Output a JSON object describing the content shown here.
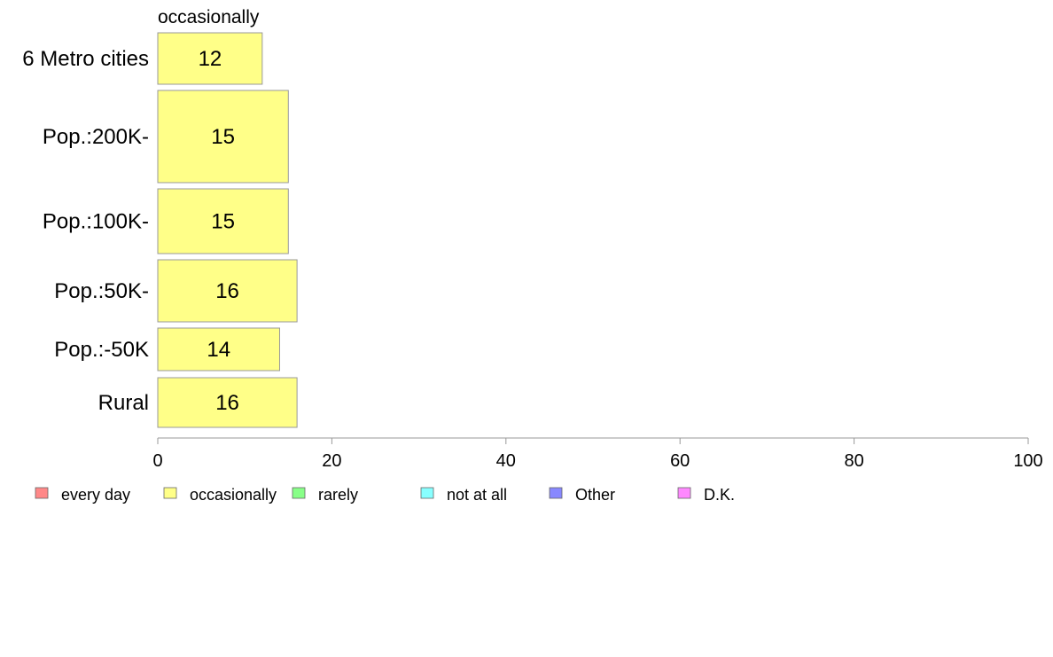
{
  "chart_data": {
    "type": "bar",
    "orientation": "horizontal",
    "title": "occasionally",
    "categories": [
      "6 Metro cities",
      "Pop.:200K-",
      "Pop.:100K-",
      "Pop.:50K-",
      "Pop.:-50K",
      "Rural"
    ],
    "series": [
      {
        "name": "occasionally",
        "color": "#ffff88",
        "values": [
          12,
          15,
          15,
          16,
          14,
          16
        ],
        "labels": [
          "12",
          "15",
          "15",
          "16",
          "14",
          "16"
        ]
      }
    ],
    "xlim": [
      0,
      100
    ],
    "xticks": [
      "0",
      "20",
      "40",
      "60",
      "80",
      "100"
    ],
    "xlabel": "",
    "ylabel": "",
    "grid": false,
    "legend": {
      "position": "bottom",
      "items": [
        {
          "label": "every day",
          "color": "#ff8888"
        },
        {
          "label": "occasionally",
          "color": "#ffff88"
        },
        {
          "label": "rarely",
          "color": "#88ff88"
        },
        {
          "label": "not at all",
          "color": "#88ffff"
        },
        {
          "label": "Other",
          "color": "#8888ff"
        },
        {
          "label": "D.K.",
          "color": "#ff88ff"
        }
      ]
    },
    "bar_border_color": "#999999",
    "axis_color": "#999999"
  }
}
